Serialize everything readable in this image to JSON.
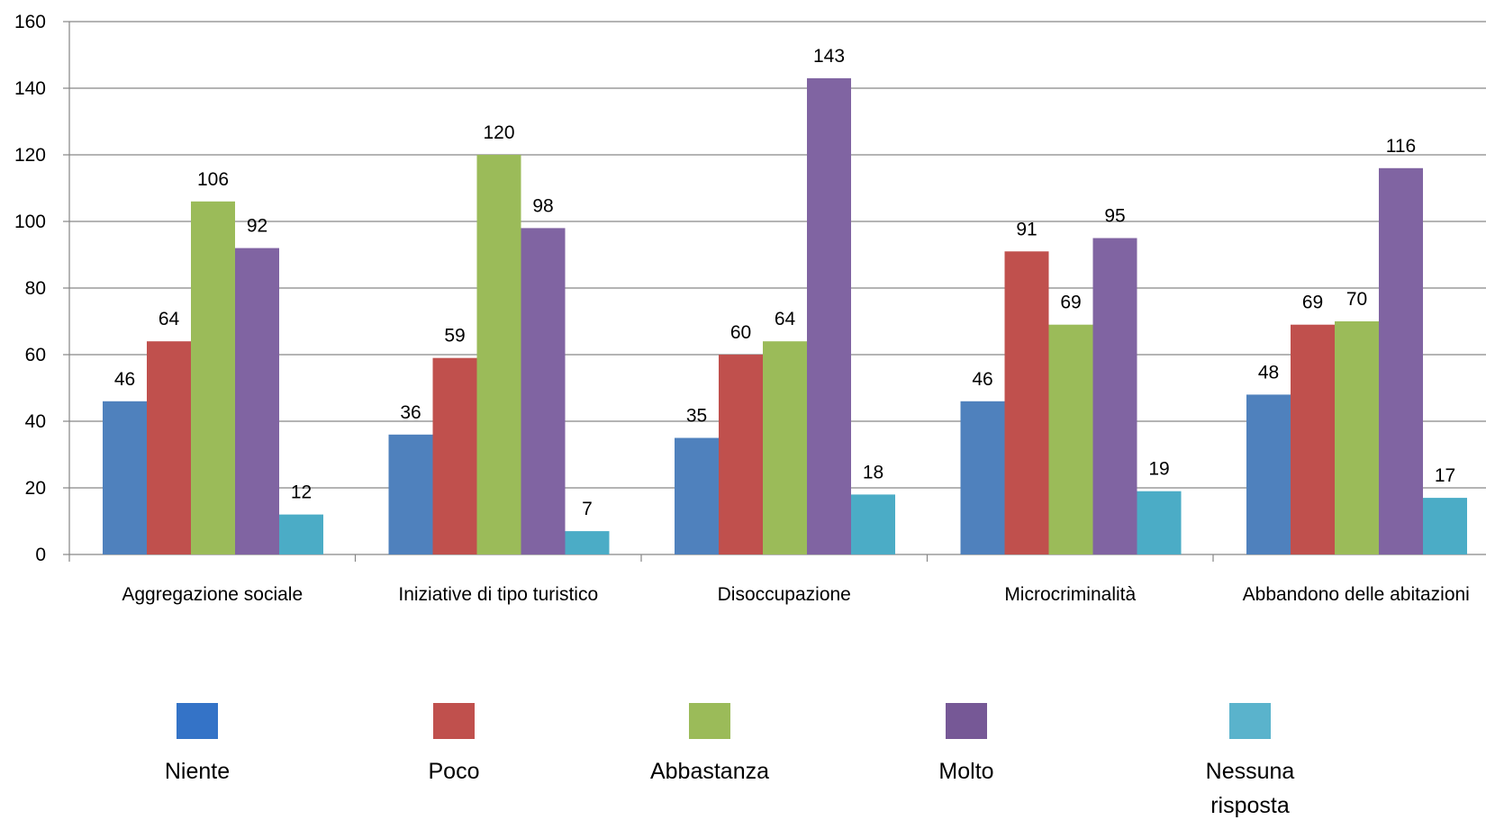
{
  "chart_data": {
    "type": "bar",
    "title": "",
    "xlabel": "",
    "ylabel": "",
    "ylim": [
      0,
      160
    ],
    "yticks": [
      0,
      20,
      40,
      60,
      80,
      100,
      120,
      140,
      160
    ],
    "grid": true,
    "legend_position": "bottom",
    "categories": [
      "Aggregazione sociale",
      "Iniziative di tipo turistico",
      "Disoccupazione",
      "Microcriminalità",
      "Abbandono delle abitazioni"
    ],
    "series": [
      {
        "name": "Niente",
        "color": "#4F81BD",
        "legend_color": "#3473C7",
        "values": [
          46,
          36,
          35,
          46,
          48
        ]
      },
      {
        "name": "Poco",
        "color": "#C0504D",
        "legend_color": "#C0504D",
        "values": [
          64,
          59,
          60,
          91,
          69
        ]
      },
      {
        "name": "Abbastanza",
        "color": "#9BBB59",
        "legend_color": "#9BBB59",
        "values": [
          106,
          120,
          64,
          69,
          70
        ]
      },
      {
        "name": "Molto",
        "color": "#8064A2",
        "legend_color": "#765896",
        "values": [
          92,
          98,
          143,
          95,
          116
        ]
      },
      {
        "name": "Nessuna risposta",
        "legend_lines": [
          "Nessuna",
          "risposta"
        ],
        "color": "#4BACC6",
        "legend_color": "#5AB3CC",
        "values": [
          12,
          7,
          18,
          19,
          17
        ]
      }
    ]
  }
}
